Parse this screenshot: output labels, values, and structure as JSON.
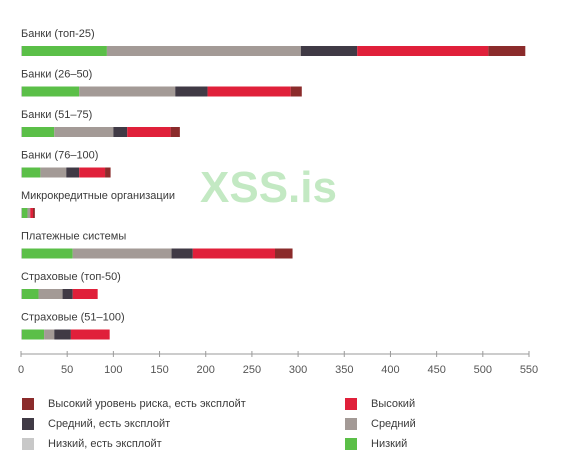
{
  "chart_data": {
    "type": "bar",
    "orientation": "horizontal",
    "stacked": true,
    "categories": [
      "Банки (топ-25)",
      "Банки (26–50)",
      "Банки (51–75)",
      "Банки (76–100)",
      "Микрокредитные организации",
      "Платежные системы",
      "Страховые (топ-50)",
      "Страховые (51–100)"
    ],
    "series": [
      {
        "name": "Низкий, есть эксплойт",
        "color": "#c8c8c8",
        "values": [
          1,
          1,
          1,
          1,
          1,
          1,
          1,
          1
        ]
      },
      {
        "name": "Низкий",
        "color": "#5bbf48",
        "values": [
          92,
          62,
          35,
          20,
          6,
          55,
          18,
          24
        ]
      },
      {
        "name": "Средний",
        "color": "#a39a96",
        "values": [
          210,
          104,
          64,
          28,
          3,
          107,
          26,
          11
        ]
      },
      {
        "name": "Средний, есть эксплойт",
        "color": "#403a45",
        "values": [
          61,
          35,
          15,
          14,
          0,
          23,
          11,
          18
        ]
      },
      {
        "name": "Высокий",
        "color": "#e0203a",
        "values": [
          142,
          90,
          47,
          28,
          3,
          89,
          27,
          42
        ]
      },
      {
        "name": "Высокий уровень риска, есть эксплойт",
        "color": "#8b2b2b",
        "values": [
          40,
          12,
          10,
          6,
          2,
          19,
          0,
          0
        ]
      }
    ],
    "xlim": [
      0,
      550
    ],
    "xticks": [
      0,
      50,
      100,
      150,
      200,
      250,
      300,
      350,
      400,
      450,
      500,
      550
    ],
    "grid": false,
    "legend_position": "bottom"
  },
  "watermark": "XSS.is",
  "legend": [
    {
      "label": "Высокий уровень риска, есть эксплойт",
      "color": "#8b2b2b"
    },
    {
      "label": "Высокий",
      "color": "#e0203a"
    },
    {
      "label": "Средний, есть эксплойт",
      "color": "#403a45"
    },
    {
      "label": "Средний",
      "color": "#a39a96"
    },
    {
      "label": "Низкий, есть эксплойт",
      "color": "#c8c8c8"
    },
    {
      "label": "Низкий",
      "color": "#5bbf48"
    }
  ]
}
